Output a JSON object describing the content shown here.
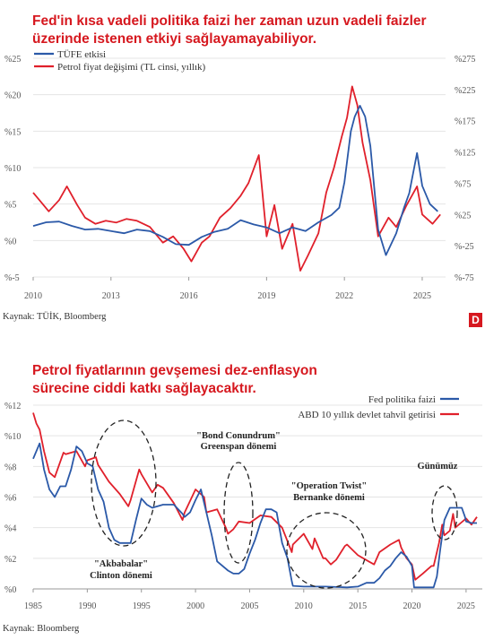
{
  "chart_data": [
    {
      "type": "line",
      "title": "Fed'in kısa vadeli politika faizi her zaman uzun vadeli faizler üzerinde istenen etkiyi sağlayamayabiliyor.",
      "source": "Kaynak: TÜİK, Bloomberg",
      "badge": "D",
      "legend_position": "top-left",
      "xlim": [
        2010,
        2025.9
      ],
      "x_ticks": [
        "2010",
        "2013",
        "2016",
        "2019",
        "2022",
        "2025"
      ],
      "left_axis": {
        "ylim": [
          -5,
          25
        ],
        "ticks": [
          "%-5",
          "%0",
          "%5",
          "%10",
          "%15",
          "%20",
          "%25"
        ]
      },
      "right_axis": {
        "ylim": [
          -75,
          275
        ],
        "ticks": [
          "%-75",
          "%-25",
          "%25",
          "%75",
          "%125",
          "%175",
          "%225",
          "%275"
        ]
      },
      "series": [
        {
          "name": "TÜFE etkisi",
          "axis": "left",
          "color": "#2b59a8",
          "x": [
            2010,
            2010.5,
            2011,
            2011.5,
            2012,
            2012.5,
            2013,
            2013.5,
            2014,
            2014.5,
            2015,
            2015.5,
            2016,
            2016.5,
            2017,
            2017.5,
            2018,
            2018.5,
            2019,
            2019.5,
            2020,
            2020.5,
            2021,
            2021.5,
            2021.8,
            2022,
            2022.25,
            2022.4,
            2022.6,
            2022.8,
            2023,
            2023.3,
            2023.6,
            2024,
            2024.3,
            2024.5,
            2024.8,
            2025,
            2025.3,
            2025.6
          ],
          "y": [
            2.0,
            2.5,
            2.6,
            2.0,
            1.5,
            1.6,
            1.3,
            1.0,
            1.5,
            1.3,
            0.5,
            -0.5,
            -0.6,
            0.5,
            1.2,
            1.6,
            2.8,
            2.2,
            1.8,
            1.0,
            1.8,
            1.3,
            2.5,
            3.5,
            4.5,
            8.0,
            15.0,
            17.0,
            18.5,
            17.0,
            13.0,
            1.5,
            -2.0,
            1.0,
            4.5,
            6.5,
            12.0,
            7.5,
            5.0,
            4.0
          ]
        },
        {
          "name": "Petrol fiyat değişimi (TL cinsi, yıllık)",
          "axis": "right",
          "color": "#e0202b",
          "x": [
            2010,
            2010.3,
            2010.6,
            2011,
            2011.3,
            2011.7,
            2012,
            2012.4,
            2012.8,
            2013.2,
            2013.6,
            2014,
            2014.5,
            2015,
            2015.4,
            2015.8,
            2016.1,
            2016.5,
            2016.8,
            2017.2,
            2017.6,
            2018,
            2018.3,
            2018.7,
            2019,
            2019.3,
            2019.6,
            2020,
            2020.3,
            2020.6,
            2021,
            2021.3,
            2021.6,
            2021.9,
            2022.1,
            2022.3,
            2022.5,
            2022.7,
            2023,
            2023.3,
            2023.7,
            2024,
            2024.4,
            2024.8,
            2025,
            2025.4,
            2025.7
          ],
          "y": [
            60,
            45,
            30,
            48,
            70,
            40,
            20,
            10,
            15,
            12,
            18,
            15,
            5,
            -20,
            -10,
            -30,
            -50,
            -20,
            -10,
            20,
            35,
            55,
            75,
            120,
            -10,
            40,
            -30,
            10,
            -65,
            -40,
            -5,
            60,
            100,
            150,
            180,
            230,
            200,
            140,
            80,
            -10,
            20,
            5,
            40,
            70,
            25,
            10,
            25
          ]
        }
      ]
    },
    {
      "type": "line",
      "title": "Petrol fiyatlarının gevşemesi dez-enflasyon sürecine ciddi katkı sağlayacaktır.",
      "source": "Kaynak: Bloomberg",
      "legend_position": "top-right",
      "xlim": [
        1985,
        2026.5
      ],
      "ylim": [
        0,
        12
      ],
      "x_ticks": [
        "1985",
        "1990",
        "1995",
        "2000",
        "2005",
        "2010",
        "2015",
        "2020",
        "2025"
      ],
      "y_ticks": [
        "%0",
        "%2",
        "%4",
        "%6",
        "%8",
        "%10",
        "%12"
      ],
      "annotations": [
        {
          "line1": "\"Akbabalar\"",
          "line2": "Clinton dönemi"
        },
        {
          "line1": "\"Bond Conundrum\"",
          "line2": "Greenspan dönemi"
        },
        {
          "line1": "\"Operation Twist\"",
          "line2": "Bernanke dönemi"
        },
        {
          "line1": "Günümüz",
          "line2": ""
        }
      ],
      "series": [
        {
          "name": "Fed politika faizi",
          "color": "#2b59a8",
          "x": [
            1985,
            1985.6,
            1986,
            1986.5,
            1987,
            1987.5,
            1988,
            1988.5,
            1989,
            1989.5,
            1990,
            1990.5,
            1991,
            1991.5,
            1992,
            1992.5,
            1993,
            1993.5,
            1994,
            1994.5,
            1995,
            1995.5,
            1996,
            1997,
            1998,
            1998.8,
            1999,
            1999.5,
            2000,
            2000.5,
            2001,
            2001.5,
            2002,
            2003,
            2003.5,
            2004,
            2004.5,
            2005,
            2005.5,
            2006,
            2006.5,
            2007,
            2007.5,
            2008,
            2008.5,
            2008.9,
            2009,
            2010,
            2012,
            2014,
            2015,
            2015.8,
            2016,
            2016.5,
            2017,
            2017.5,
            2018,
            2018.5,
            2019,
            2019.5,
            2020,
            2020.2,
            2021,
            2022,
            2022.3,
            2022.6,
            2022.9,
            2023,
            2023.5,
            2024,
            2024.6,
            2024.9,
            2025,
            2025.5,
            2026
          ],
          "y": [
            8.5,
            9.5,
            7.8,
            6.5,
            6.0,
            6.7,
            6.7,
            7.8,
            9.3,
            9.0,
            8.2,
            8.0,
            6.5,
            5.7,
            4.0,
            3.2,
            3.0,
            3.0,
            3.0,
            4.5,
            5.9,
            5.5,
            5.3,
            5.5,
            5.5,
            4.9,
            4.7,
            5.0,
            5.8,
            6.5,
            5.0,
            3.5,
            1.8,
            1.2,
            1.0,
            1.0,
            1.3,
            2.3,
            3.2,
            4.3,
            5.2,
            5.2,
            5.0,
            3.0,
            2.0,
            0.5,
            0.2,
            0.15,
            0.15,
            0.1,
            0.15,
            0.4,
            0.4,
            0.4,
            0.7,
            1.2,
            1.5,
            2.0,
            2.4,
            2.1,
            1.5,
            0.1,
            0.1,
            0.1,
            0.8,
            2.5,
            4.0,
            4.5,
            5.3,
            5.3,
            5.3,
            4.7,
            4.4,
            4.3,
            4.3
          ]
        },
        {
          "name": "ABD 10 yıllık devlet tahvil getirisi",
          "color": "#e0202b",
          "x": [
            1985,
            1985.3,
            1985.6,
            1986,
            1986.5,
            1987,
            1987.8,
            1988,
            1989,
            1989.8,
            1990,
            1990.8,
            1991,
            1992,
            1993,
            1993.8,
            1994,
            1994.8,
            1995,
            1996,
            1996.5,
            1997,
            1998,
            1998.8,
            1999,
            2000,
            2000.8,
            2001,
            2002,
            2002.8,
            2003,
            2003.5,
            2004,
            2005,
            2006,
            2007,
            2008,
            2008.9,
            2009,
            2010,
            2010.8,
            2011,
            2011.8,
            2012,
            2012.5,
            2013,
            2013.8,
            2014,
            2015,
            2016,
            2016.5,
            2017,
            2018,
            2018.8,
            2019,
            2019.5,
            2020,
            2020.3,
            2021,
            2021.8,
            2022,
            2022.5,
            2022.8,
            2023,
            2023.5,
            2023.8,
            2024,
            2024.5,
            2025,
            2025.5,
            2026
          ],
          "y": [
            11.5,
            10.8,
            10.4,
            9.0,
            7.6,
            7.3,
            8.9,
            8.8,
            9.0,
            8.0,
            8.4,
            8.6,
            8.1,
            7.0,
            6.2,
            5.4,
            5.8,
            7.8,
            7.5,
            6.3,
            6.8,
            6.6,
            5.6,
            4.5,
            5.0,
            6.5,
            6.0,
            5.0,
            5.2,
            4.0,
            3.6,
            3.9,
            4.4,
            4.3,
            4.8,
            4.7,
            4.0,
            2.4,
            2.9,
            3.6,
            2.6,
            3.3,
            2.0,
            2.0,
            1.6,
            1.9,
            2.8,
            2.9,
            2.2,
            1.8,
            1.6,
            2.4,
            2.9,
            3.2,
            2.7,
            2.0,
            1.6,
            0.6,
            1.0,
            1.5,
            1.5,
            3.0,
            4.2,
            3.5,
            3.8,
            4.9,
            4.0,
            4.3,
            4.6,
            4.2,
            4.7
          ]
        }
      ]
    }
  ]
}
